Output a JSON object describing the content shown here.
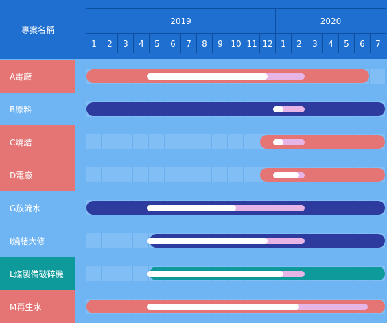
{
  "header": {
    "project_label": "專案名稱"
  },
  "chart_data": {
    "type": "gantt",
    "timeline": {
      "years": [
        {
          "label": "2019",
          "months": [
            "1",
            "2",
            "3",
            "4",
            "5",
            "6",
            "7",
            "8",
            "9",
            "10",
            "11",
            "12"
          ]
        },
        {
          "label": "2020",
          "months": [
            "1",
            "2",
            "3",
            "4",
            "5",
            "6",
            "7"
          ]
        }
      ]
    },
    "colors": {
      "pink": "#E57575",
      "navy": "#2E3B9E",
      "teal": "#0E9A9A",
      "label_blue": "#6FB5F3",
      "plan": "#E7B4E6",
      "actual": "#FFFFFF"
    },
    "tasks": [
      {
        "name": "A電廠",
        "label_color": "#E57575",
        "bar_color": "#E57575",
        "bar": [
          "2019-01",
          "2020-06"
        ],
        "plan": [
          "2019-05",
          "2020-02"
        ],
        "actual": [
          "2019-05",
          "2019-12"
        ]
      },
      {
        "name": "B原料",
        "label_color": "#6FB5F3",
        "bar_color": "#2E3B9E",
        "bar": [
          "2019-01",
          "2020-07"
        ],
        "plan": [
          "2020-01",
          "2020-02"
        ],
        "actual": [
          "2020-01",
          "2020-01"
        ]
      },
      {
        "name": "C燒結",
        "label_color": "#E57575",
        "bar_color": "#E57575",
        "bar": [
          "2019-12",
          "2020-07"
        ],
        "plan": [
          "2020-01",
          "2020-02"
        ],
        "actual": [
          "2020-01",
          "2020-01"
        ]
      },
      {
        "name": "D電廠",
        "label_color": "#E57575",
        "bar_color": "#E57575",
        "bar": [
          "2019-12",
          "2020-07"
        ],
        "plan": [
          "2020-01",
          "2020-02"
        ],
        "actual": [
          "2020-01",
          "2020-02"
        ]
      },
      {
        "name": "G放流水",
        "label_color": "#6FB5F3",
        "bar_color": "#2E3B9E",
        "bar": [
          "2019-01",
          "2020-07"
        ],
        "plan": [
          "2019-05",
          "2020-02"
        ],
        "actual": [
          "2019-05",
          "2019-10"
        ]
      },
      {
        "name": "I燒結大修",
        "label_color": "#6FB5F3",
        "bar_color": "#2E3B9E",
        "bar": [
          "2019-05",
          "2020-07"
        ],
        "plan": [
          "2019-05",
          "2020-02"
        ],
        "actual": [
          "2019-05",
          "2019-12"
        ]
      },
      {
        "name": "L煤製備破碎機",
        "label_color": "#0E9A9A",
        "bar_color": "#0E9A9A",
        "bar": [
          "2019-05",
          "2020-07"
        ],
        "plan": [
          "2019-05",
          "2020-02"
        ],
        "actual": [
          "2019-05",
          "2020-01"
        ]
      },
      {
        "name": "M再生水",
        "label_color": "#E57575",
        "bar_color": "#E57575",
        "bar": [
          "2019-01",
          "2020-07"
        ],
        "plan": [
          "2019-05",
          "2020-06"
        ],
        "actual": [
          "2019-05",
          "2020-02"
        ]
      }
    ]
  }
}
